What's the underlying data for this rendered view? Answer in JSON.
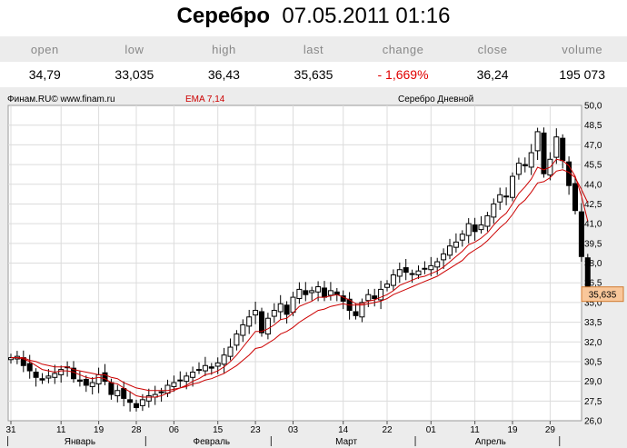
{
  "header": {
    "instrument": "Серебро",
    "datetime": "07.05.2011 01:16"
  },
  "quote": {
    "columns": [
      "open",
      "low",
      "high",
      "last",
      "change",
      "close",
      "volume"
    ],
    "values": [
      "34,79",
      "33,035",
      "36,43",
      "35,635",
      "- 1,669%",
      "36,24",
      "195 073"
    ]
  },
  "chart_data": {
    "type": "candlestick",
    "source_label": "Финам.RU© www.finam.ru",
    "indicator_label": "EMA 7,14",
    "title": "Серебро Дневной",
    "last_price": 35.635,
    "last_price_label": "35,635",
    "ylim": [
      26.0,
      50.0
    ],
    "y_ticks": [
      26.0,
      27.5,
      29.0,
      30.5,
      32.0,
      33.5,
      35.0,
      36.5,
      38.0,
      39.5,
      41.0,
      42.5,
      44.0,
      45.5,
      47.0,
      48.5,
      50.0
    ],
    "y_tick_labels": [
      "26,0",
      "27,5",
      "29,0",
      "30,5",
      "32,0",
      "33,5",
      "35,0",
      "36,5",
      "38,0",
      "39,5",
      "41,0",
      "42,5",
      "44,0",
      "45,5",
      "47,0",
      "48,5",
      "50,0"
    ],
    "day_labels": [
      {
        "index": 0,
        "label": "31"
      },
      {
        "index": 8,
        "label": "11"
      },
      {
        "index": 14,
        "label": "19"
      },
      {
        "index": 20,
        "label": "28"
      },
      {
        "index": 26,
        "label": "06"
      },
      {
        "index": 33,
        "label": "15"
      },
      {
        "index": 39,
        "label": "23"
      },
      {
        "index": 45,
        "label": "03"
      },
      {
        "index": 53,
        "label": "14"
      },
      {
        "index": 60,
        "label": "22"
      },
      {
        "index": 67,
        "label": "01"
      },
      {
        "index": 74,
        "label": "11"
      },
      {
        "index": 80,
        "label": "19"
      },
      {
        "index": 86,
        "label": "29"
      }
    ],
    "months": [
      {
        "start": 0,
        "end": 22,
        "label": "Январь"
      },
      {
        "start": 22,
        "end": 42,
        "label": "Февраль"
      },
      {
        "start": 42,
        "end": 65,
        "label": "Март"
      },
      {
        "start": 65,
        "end": 88,
        "label": "Апрель"
      },
      {
        "start": 88,
        "end": 92,
        "label": ""
      }
    ],
    "closes": [
      30.8,
      30.9,
      30.2,
      29.8,
      29.3,
      29.1,
      29.4,
      29.6,
      29.9,
      30.1,
      29.2,
      29.0,
      28.7,
      28.9,
      29.5,
      29.0,
      28.0,
      28.3,
      27.7,
      27.4,
      27.0,
      27.6,
      27.9,
      28.0,
      28.2,
      28.7,
      28.9,
      29.1,
      29.4,
      29.7,
      29.9,
      30.2,
      30.0,
      30.4,
      31.0,
      31.6,
      32.6,
      33.3,
      33.9,
      34.4,
      32.7,
      33.8,
      34.4,
      34.9,
      34.1,
      35.4,
      36.0,
      35.6,
      35.9,
      36.2,
      35.4,
      35.9,
      35.6,
      35.1,
      34.4,
      34.0,
      35.0,
      35.6,
      35.3,
      36.0,
      36.4,
      37.1,
      37.5,
      37.3,
      37.2,
      37.4,
      37.6,
      37.8,
      38.1,
      38.7,
      39.3,
      39.6,
      40.2,
      41.0,
      40.4,
      40.9,
      41.6,
      42.5,
      43.2,
      43.1,
      44.6,
      45.6,
      45.4,
      46.4,
      48.0,
      44.8,
      45.9,
      47.6,
      45.8,
      43.9,
      42.0,
      38.5,
      35.635
    ],
    "ema7": [
      30.8,
      30.8,
      30.7,
      30.5,
      30.2,
      29.9,
      29.8,
      29.7,
      29.8,
      29.8,
      29.7,
      29.5,
      29.3,
      29.2,
      29.3,
      29.2,
      28.9,
      28.8,
      28.5,
      28.2,
      27.9,
      27.8,
      27.8,
      27.8,
      27.9,
      28.1,
      28.3,
      28.5,
      28.7,
      29.0,
      29.2,
      29.5,
      29.6,
      29.8,
      30.1,
      30.5,
      31.0,
      31.6,
      32.2,
      32.8,
      32.8,
      33.0,
      33.3,
      33.7,
      33.8,
      34.2,
      34.7,
      34.9,
      35.1,
      35.4,
      35.4,
      35.5,
      35.6,
      35.4,
      35.2,
      34.9,
      34.9,
      35.1,
      35.2,
      35.4,
      35.6,
      35.9,
      36.3,
      36.5,
      36.7,
      36.9,
      37.0,
      37.2,
      37.4,
      37.7,
      38.1,
      38.5,
      38.9,
      39.4,
      39.6,
      39.9,
      40.3,
      40.9,
      41.4,
      41.8,
      42.5,
      43.3,
      43.8,
      44.4,
      45.3,
      45.1,
      45.3,
      45.9,
      45.8,
      45.4,
      44.6,
      43.1,
      41.2
    ],
    "ema14": [
      30.8,
      30.8,
      30.8,
      30.6,
      30.5,
      30.3,
      30.2,
      30.1,
      30.1,
      30.1,
      29.9,
      29.8,
      29.7,
      29.6,
      29.5,
      29.5,
      29.3,
      29.2,
      28.9,
      28.7,
      28.5,
      28.4,
      28.3,
      28.3,
      28.3,
      28.3,
      28.4,
      28.5,
      28.6,
      28.8,
      28.9,
      29.1,
      29.2,
      29.4,
      29.6,
      29.9,
      30.2,
      30.6,
      31.0,
      31.5,
      31.6,
      31.9,
      32.2,
      32.6,
      32.8,
      33.1,
      33.5,
      33.8,
      34.1,
      34.4,
      34.5,
      34.7,
      34.8,
      34.9,
      34.8,
      34.8,
      34.8,
      34.9,
      35.0,
      35.1,
      35.3,
      35.6,
      35.8,
      36.0,
      36.2,
      36.4,
      36.6,
      36.8,
      37.0,
      37.3,
      37.6,
      37.9,
      38.2,
      38.7,
      39.0,
      39.3,
      39.7,
      40.2,
      40.7,
      41.1,
      41.7,
      42.4,
      42.8,
      43.4,
      44.1,
      44.2,
      44.5,
      45.0,
      45.1,
      44.9,
      44.5,
      43.6,
      42.6
    ]
  }
}
